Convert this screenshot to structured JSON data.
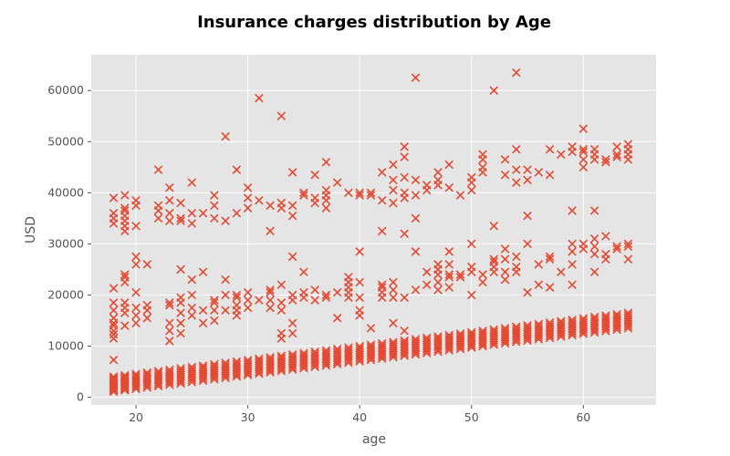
{
  "chart_data": {
    "type": "scatter",
    "title": "Insurance charges distribution by Age",
    "xlabel": "age",
    "ylabel": "USD",
    "xlim": [
      16,
      66.5
    ],
    "ylim": [
      -1500,
      67000
    ],
    "xticks": [
      20,
      30,
      40,
      50,
      60
    ],
    "yticks": [
      0,
      10000,
      20000,
      30000,
      40000,
      50000,
      60000
    ],
    "marker": "x",
    "grid": true,
    "style": "ggplot",
    "colors": {
      "marker": "#E24A33",
      "panel": "#E5E5E5",
      "grid": "#FFFFFF",
      "text": "#555555"
    },
    "bands": [
      {
        "name": "",
        "description": "dense lower band, several points per age",
        "x_range": [
          18,
          64
        ],
        "y_low_start": 1100,
        "y_low_end": 13500,
        "y_high_start": 4000,
        "y_high_end": 16500
      }
    ],
    "points": [
      [
        18,
        7300
      ],
      [
        18,
        11500
      ],
      [
        18,
        12300
      ],
      [
        18,
        13000
      ],
      [
        18,
        14000
      ],
      [
        18,
        14500
      ],
      [
        18,
        15500
      ],
      [
        18,
        17000
      ],
      [
        18,
        18500
      ],
      [
        18,
        21300
      ],
      [
        18,
        34000
      ],
      [
        18,
        35000
      ],
      [
        18,
        36000
      ],
      [
        18,
        39000
      ],
      [
        19,
        14000
      ],
      [
        19,
        16500
      ],
      [
        19,
        17500
      ],
      [
        19,
        18500
      ],
      [
        19,
        22500
      ],
      [
        19,
        23500
      ],
      [
        19,
        24000
      ],
      [
        19,
        32500
      ],
      [
        19,
        33500
      ],
      [
        19,
        34500
      ],
      [
        19,
        35500
      ],
      [
        19,
        36500
      ],
      [
        19,
        37000
      ],
      [
        19,
        39500
      ],
      [
        20,
        14500
      ],
      [
        20,
        16000
      ],
      [
        20,
        17500
      ],
      [
        20,
        20500
      ],
      [
        20,
        26000
      ],
      [
        20,
        27500
      ],
      [
        20,
        33500
      ],
      [
        20,
        37500
      ],
      [
        20,
        38500
      ],
      [
        21,
        15500
      ],
      [
        21,
        17000
      ],
      [
        21,
        18000
      ],
      [
        21,
        26000
      ],
      [
        22,
        35000
      ],
      [
        22,
        36500
      ],
      [
        22,
        37500
      ],
      [
        22,
        44500
      ],
      [
        23,
        11000
      ],
      [
        23,
        13000
      ],
      [
        23,
        14500
      ],
      [
        23,
        18000
      ],
      [
        23,
        18500
      ],
      [
        23,
        34500
      ],
      [
        23,
        36000
      ],
      [
        23,
        38500
      ],
      [
        23,
        41000
      ],
      [
        24,
        12500
      ],
      [
        24,
        14500
      ],
      [
        24,
        16500
      ],
      [
        24,
        18500
      ],
      [
        24,
        19500
      ],
      [
        24,
        25000
      ],
      [
        24,
        34500
      ],
      [
        24,
        35000
      ],
      [
        24,
        38000
      ],
      [
        25,
        16000
      ],
      [
        25,
        17500
      ],
      [
        25,
        20000
      ],
      [
        25,
        23000
      ],
      [
        25,
        34000
      ],
      [
        25,
        36000
      ],
      [
        25,
        42000
      ],
      [
        26,
        14500
      ],
      [
        26,
        17000
      ],
      [
        26,
        24500
      ],
      [
        26,
        36000
      ],
      [
        27,
        15000
      ],
      [
        27,
        17000
      ],
      [
        27,
        18500
      ],
      [
        27,
        19000
      ],
      [
        27,
        35000
      ],
      [
        27,
        37500
      ],
      [
        27,
        39500
      ],
      [
        28,
        17000
      ],
      [
        28,
        20000
      ],
      [
        28,
        23000
      ],
      [
        28,
        34500
      ],
      [
        28,
        51000
      ],
      [
        29,
        16000
      ],
      [
        29,
        17000
      ],
      [
        29,
        18000
      ],
      [
        29,
        19500
      ],
      [
        29,
        20000
      ],
      [
        29,
        36000
      ],
      [
        29,
        44500
      ],
      [
        30,
        17500
      ],
      [
        30,
        19000
      ],
      [
        30,
        20500
      ],
      [
        30,
        37000
      ],
      [
        30,
        39000
      ],
      [
        30,
        41000
      ],
      [
        31,
        19000
      ],
      [
        31,
        38500
      ],
      [
        31,
        58500
      ],
      [
        32,
        17500
      ],
      [
        32,
        19000
      ],
      [
        32,
        20500
      ],
      [
        32,
        21000
      ],
      [
        32,
        32500
      ],
      [
        32,
        37500
      ],
      [
        33,
        11500
      ],
      [
        33,
        12500
      ],
      [
        33,
        17000
      ],
      [
        33,
        18500
      ],
      [
        33,
        22000
      ],
      [
        33,
        37000
      ],
      [
        33,
        38000
      ],
      [
        33,
        55000
      ],
      [
        34,
        12500
      ],
      [
        34,
        14500
      ],
      [
        34,
        19000
      ],
      [
        34,
        20000
      ],
      [
        34,
        27500
      ],
      [
        34,
        35500
      ],
      [
        34,
        37500
      ],
      [
        34,
        44000
      ],
      [
        35,
        19500
      ],
      [
        35,
        20500
      ],
      [
        35,
        24500
      ],
      [
        35,
        39500
      ],
      [
        35,
        40000
      ],
      [
        36,
        19000
      ],
      [
        36,
        21000
      ],
      [
        36,
        38000
      ],
      [
        36,
        39000
      ],
      [
        36,
        43500
      ],
      [
        37,
        19500
      ],
      [
        37,
        20000
      ],
      [
        37,
        37000
      ],
      [
        37,
        38500
      ],
      [
        37,
        39500
      ],
      [
        37,
        40500
      ],
      [
        37,
        46000
      ],
      [
        38,
        15500
      ],
      [
        38,
        20500
      ],
      [
        38,
        42000
      ],
      [
        39,
        19500
      ],
      [
        39,
        20500
      ],
      [
        39,
        21500
      ],
      [
        39,
        22500
      ],
      [
        39,
        23500
      ],
      [
        39,
        40000
      ],
      [
        40,
        16000
      ],
      [
        40,
        17000
      ],
      [
        40,
        19500
      ],
      [
        40,
        22500
      ],
      [
        40,
        28500
      ],
      [
        40,
        39500
      ],
      [
        40,
        40000
      ],
      [
        41,
        13500
      ],
      [
        41,
        39500
      ],
      [
        41,
        40000
      ],
      [
        42,
        19500
      ],
      [
        42,
        20500
      ],
      [
        42,
        21500
      ],
      [
        42,
        22000
      ],
      [
        42,
        32500
      ],
      [
        42,
        38500
      ],
      [
        42,
        44000
      ],
      [
        43,
        14500
      ],
      [
        43,
        19500
      ],
      [
        43,
        21000
      ],
      [
        43,
        22500
      ],
      [
        43,
        38000
      ],
      [
        43,
        40500
      ],
      [
        43,
        42500
      ],
      [
        43,
        45500
      ],
      [
        44,
        13000
      ],
      [
        44,
        19500
      ],
      [
        44,
        32000
      ],
      [
        44,
        39000
      ],
      [
        44,
        40000
      ],
      [
        44,
        43000
      ],
      [
        44,
        47000
      ],
      [
        44,
        49000
      ],
      [
        45,
        21000
      ],
      [
        45,
        28500
      ],
      [
        45,
        35000
      ],
      [
        45,
        39500
      ],
      [
        45,
        42500
      ],
      [
        45,
        62500
      ],
      [
        46,
        22000
      ],
      [
        46,
        24500
      ],
      [
        46,
        40500
      ],
      [
        46,
        41500
      ],
      [
        47,
        21000
      ],
      [
        47,
        22500
      ],
      [
        47,
        24000
      ],
      [
        47,
        25000
      ],
      [
        47,
        26000
      ],
      [
        47,
        41500
      ],
      [
        47,
        42500
      ],
      [
        47,
        44000
      ],
      [
        48,
        21500
      ],
      [
        48,
        23500
      ],
      [
        48,
        24000
      ],
      [
        48,
        26000
      ],
      [
        48,
        28500
      ],
      [
        48,
        41000
      ],
      [
        48,
        45500
      ],
      [
        49,
        23500
      ],
      [
        49,
        24000
      ],
      [
        49,
        39500
      ],
      [
        50,
        20000
      ],
      [
        50,
        24500
      ],
      [
        50,
        25500
      ],
      [
        50,
        30000
      ],
      [
        50,
        40500
      ],
      [
        50,
        42000
      ],
      [
        50,
        43000
      ],
      [
        51,
        22500
      ],
      [
        51,
        24000
      ],
      [
        51,
        44000
      ],
      [
        51,
        45000
      ],
      [
        51,
        46500
      ],
      [
        51,
        47500
      ],
      [
        52,
        24500
      ],
      [
        52,
        25500
      ],
      [
        52,
        26500
      ],
      [
        52,
        27000
      ],
      [
        52,
        33500
      ],
      [
        52,
        60000
      ],
      [
        53,
        23000
      ],
      [
        53,
        24500
      ],
      [
        53,
        27000
      ],
      [
        53,
        29000
      ],
      [
        53,
        43500
      ],
      [
        53,
        46500
      ],
      [
        54,
        24500
      ],
      [
        54,
        25500
      ],
      [
        54,
        27500
      ],
      [
        54,
        42000
      ],
      [
        54,
        44500
      ],
      [
        54,
        48500
      ],
      [
        54,
        63500
      ],
      [
        55,
        20500
      ],
      [
        55,
        30000
      ],
      [
        55,
        35500
      ],
      [
        55,
        42500
      ],
      [
        55,
        44500
      ],
      [
        56,
        22000
      ],
      [
        56,
        26000
      ],
      [
        56,
        44000
      ],
      [
        57,
        21500
      ],
      [
        57,
        27000
      ],
      [
        57,
        27500
      ],
      [
        57,
        43500
      ],
      [
        57,
        48500
      ],
      [
        58,
        24500
      ],
      [
        58,
        47500
      ],
      [
        59,
        22000
      ],
      [
        59,
        26000
      ],
      [
        59,
        28500
      ],
      [
        59,
        30000
      ],
      [
        59,
        36500
      ],
      [
        59,
        48000
      ],
      [
        59,
        49000
      ],
      [
        60,
        29000
      ],
      [
        60,
        30000
      ],
      [
        60,
        45000
      ],
      [
        60,
        46500
      ],
      [
        60,
        48000
      ],
      [
        60,
        48500
      ],
      [
        60,
        52500
      ],
      [
        61,
        24500
      ],
      [
        61,
        28000
      ],
      [
        61,
        29500
      ],
      [
        61,
        31000
      ],
      [
        61,
        36500
      ],
      [
        61,
        46500
      ],
      [
        61,
        47500
      ],
      [
        61,
        48500
      ],
      [
        62,
        27000
      ],
      [
        62,
        28000
      ],
      [
        62,
        31500
      ],
      [
        62,
        46000
      ],
      [
        62,
        46500
      ],
      [
        63,
        29000
      ],
      [
        63,
        29500
      ],
      [
        63,
        47000
      ],
      [
        63,
        47500
      ],
      [
        63,
        49000
      ],
      [
        64,
        27000
      ],
      [
        64,
        29500
      ],
      [
        64,
        30000
      ],
      [
        64,
        46500
      ],
      [
        64,
        47500
      ],
      [
        64,
        48500
      ],
      [
        64,
        49500
      ]
    ]
  }
}
